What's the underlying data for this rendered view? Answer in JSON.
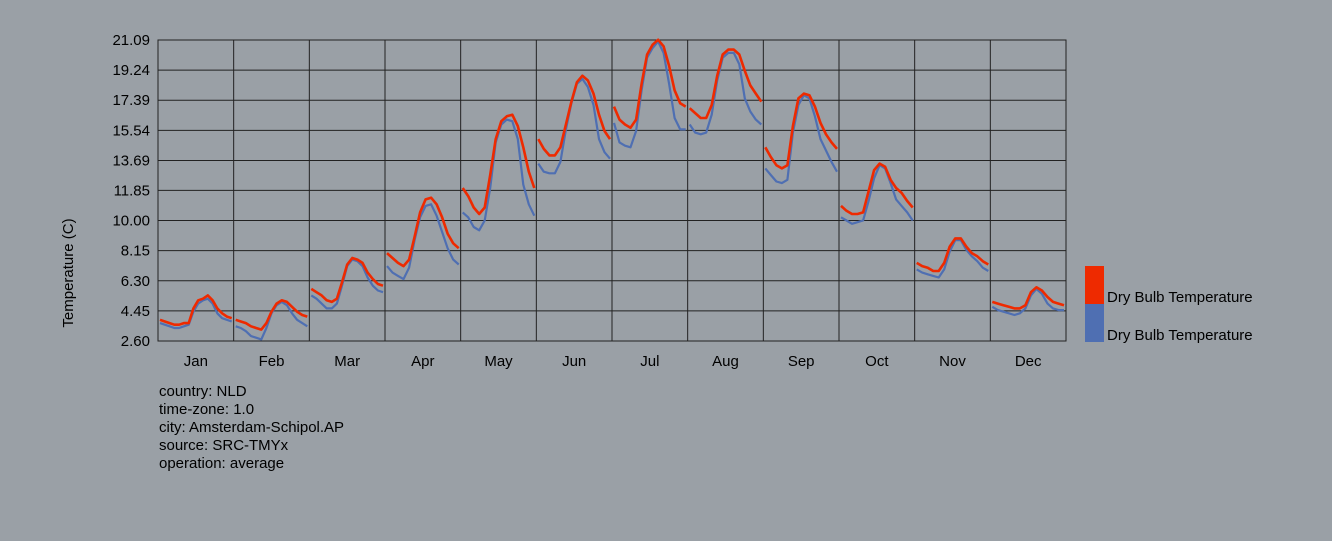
{
  "info": {
    "country": "country: NLD",
    "timezone": "time-zone: 1.0",
    "city": "city: Amsterdam-Schipol.AP",
    "source": "source: SRC-TMYx",
    "operation": "operation: average"
  },
  "chart_data": {
    "type": "line",
    "ylabel": "Temperature (C)",
    "xlabel": "",
    "ylim": [
      2.6,
      21.09
    ],
    "yticks": [
      "21.09",
      "19.24",
      "17.39",
      "15.54",
      "13.69",
      "11.85",
      "10.00",
      "8.15",
      "6.30",
      "4.45",
      "2.60"
    ],
    "categories": [
      "Jan",
      "Feb",
      "Mar",
      "Apr",
      "May",
      "Jun",
      "Jul",
      "Aug",
      "Sep",
      "Oct",
      "Nov",
      "Dec"
    ],
    "grid": true,
    "legend_position": "right",
    "series": [
      {
        "name": "Dry Bulb Temperature",
        "color": "#ee2a00",
        "values": [
          [
            3.9,
            3.8,
            3.7,
            3.6,
            3.6,
            3.7,
            3.7,
            4.6,
            5.1,
            5.2,
            5.4,
            5.1,
            4.6,
            4.3,
            4.1,
            4.0
          ],
          [
            3.9,
            3.8,
            3.7,
            3.5,
            3.4,
            3.3,
            3.7,
            4.4,
            4.9,
            5.1,
            5.0,
            4.7,
            4.4,
            4.2,
            4.1
          ],
          [
            5.8,
            5.6,
            5.4,
            5.1,
            5.0,
            5.2,
            6.2,
            7.3,
            7.7,
            7.6,
            7.4,
            6.8,
            6.4,
            6.1,
            6.0
          ],
          [
            8.0,
            7.7,
            7.4,
            7.2,
            7.6,
            9.0,
            10.5,
            11.3,
            11.4,
            11.0,
            10.2,
            9.2,
            8.6,
            8.3
          ],
          [
            12.0,
            11.5,
            10.8,
            10.4,
            10.8,
            12.8,
            15.0,
            16.1,
            16.4,
            16.5,
            15.8,
            14.5,
            13.0,
            12.0
          ],
          [
            15.0,
            14.4,
            14.0,
            14.0,
            14.5,
            15.9,
            17.3,
            18.5,
            18.9,
            18.6,
            17.8,
            16.5,
            15.5,
            15.0
          ],
          [
            17.0,
            16.2,
            15.9,
            15.7,
            16.2,
            18.4,
            20.2,
            20.8,
            21.1,
            20.7,
            19.5,
            18.0,
            17.2,
            17.0
          ],
          [
            16.9,
            16.6,
            16.3,
            16.3,
            17.1,
            18.9,
            20.2,
            20.5,
            20.5,
            20.2,
            19.2,
            18.3,
            17.8,
            17.3
          ],
          [
            14.5,
            13.9,
            13.4,
            13.2,
            13.4,
            15.8,
            17.5,
            17.8,
            17.7,
            17.0,
            16.0,
            15.3,
            14.8,
            14.4
          ],
          [
            10.9,
            10.6,
            10.4,
            10.4,
            10.5,
            11.8,
            13.1,
            13.5,
            13.3,
            12.5,
            12.0,
            11.7,
            11.2,
            10.8
          ],
          [
            7.4,
            7.2,
            7.1,
            6.9,
            6.9,
            7.4,
            8.4,
            8.9,
            8.9,
            8.4,
            8.0,
            7.8,
            7.5,
            7.3
          ],
          [
            5.0,
            4.9,
            4.8,
            4.7,
            4.6,
            4.6,
            4.8,
            5.6,
            5.9,
            5.7,
            5.3,
            5.0,
            4.9,
            4.8
          ]
        ]
      },
      {
        "name": "Dry Bulb Temperature",
        "color": "#4f6fb2",
        "values": [
          [
            3.7,
            3.6,
            3.5,
            3.4,
            3.4,
            3.5,
            3.6,
            4.4,
            4.9,
            5.1,
            5.2,
            4.9,
            4.3,
            4.0,
            3.9,
            3.8
          ],
          [
            3.5,
            3.4,
            3.2,
            2.9,
            2.8,
            2.7,
            3.4,
            4.3,
            4.8,
            5.0,
            4.8,
            4.3,
            3.9,
            3.7,
            3.5
          ],
          [
            5.4,
            5.2,
            4.9,
            4.6,
            4.6,
            4.9,
            6.0,
            7.2,
            7.6,
            7.5,
            7.2,
            6.5,
            6.0,
            5.7,
            5.6
          ],
          [
            7.2,
            6.8,
            6.6,
            6.4,
            7.1,
            8.8,
            10.2,
            10.9,
            11.0,
            10.3,
            9.3,
            8.3,
            7.6,
            7.3
          ],
          [
            10.5,
            10.2,
            9.6,
            9.4,
            10.0,
            12.0,
            14.8,
            15.9,
            16.2,
            16.1,
            15.0,
            12.2,
            11.0,
            10.3
          ],
          [
            13.5,
            13.0,
            12.9,
            12.9,
            13.6,
            15.6,
            17.2,
            18.4,
            18.7,
            18.2,
            17.1,
            15.0,
            14.2,
            13.8
          ],
          [
            16.0,
            14.8,
            14.6,
            14.5,
            15.5,
            18.0,
            20.0,
            20.6,
            21.0,
            20.3,
            18.4,
            16.3,
            15.6,
            15.6
          ],
          [
            15.9,
            15.4,
            15.3,
            15.4,
            16.5,
            18.6,
            20.0,
            20.3,
            20.3,
            19.6,
            17.5,
            16.7,
            16.2,
            15.9
          ],
          [
            13.2,
            12.8,
            12.4,
            12.3,
            12.5,
            15.4,
            17.1,
            17.7,
            17.5,
            16.4,
            15.0,
            14.3,
            13.6,
            13.0
          ],
          [
            10.2,
            10.0,
            9.8,
            9.9,
            10.0,
            11.2,
            12.6,
            13.4,
            13.2,
            12.3,
            11.3,
            10.9,
            10.5,
            10.0
          ],
          [
            7.0,
            6.8,
            6.7,
            6.6,
            6.5,
            7.0,
            8.1,
            8.8,
            8.8,
            8.2,
            7.8,
            7.5,
            7.1,
            6.9
          ],
          [
            4.7,
            4.5,
            4.4,
            4.3,
            4.2,
            4.3,
            4.6,
            5.4,
            5.8,
            5.5,
            4.9,
            4.6,
            4.5,
            4.5
          ]
        ]
      }
    ]
  }
}
